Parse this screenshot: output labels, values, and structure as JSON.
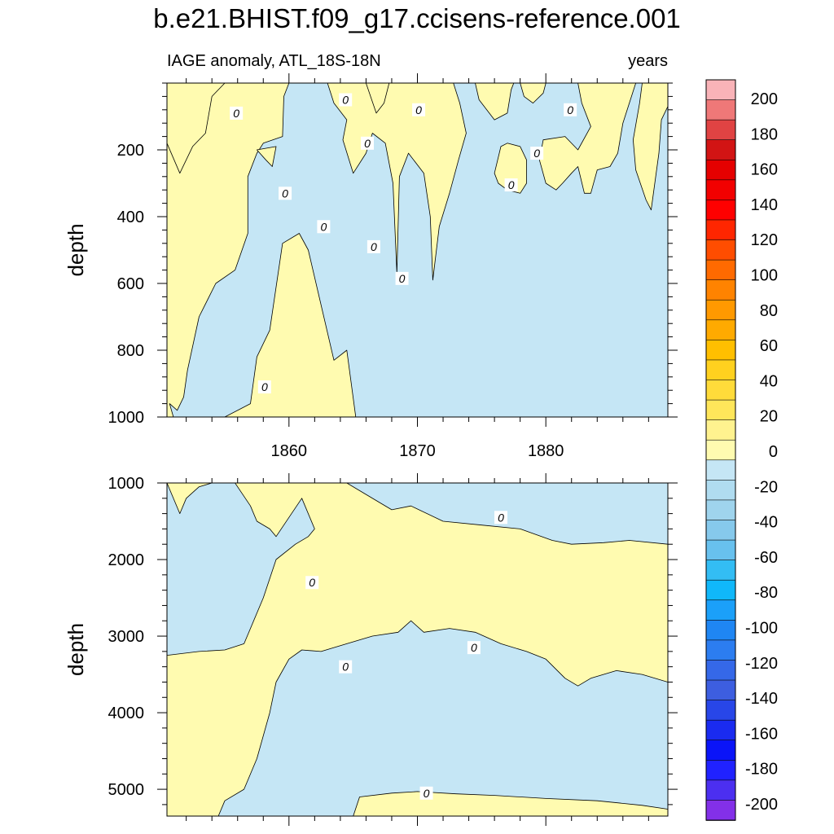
{
  "chart_data": {
    "type": "contour",
    "title": "b.e21.BHIST.f09_g17.ccisens-reference.001",
    "subtitle_left": "IAGE anomaly, ATL_18S-18N",
    "subtitle_right": "years",
    "xaxis": {
      "range": [
        1850.5,
        1889.5
      ],
      "ticks": [
        1860,
        1870,
        1880
      ],
      "tick_labels": [
        "1860",
        "1870",
        "1880"
      ]
    },
    "panels": [
      {
        "id": "upper",
        "ylabel": "depth",
        "ylim": [
          0,
          1000
        ],
        "yticks": [
          200,
          400,
          600,
          800,
          1000
        ],
        "ytick_labels": [
          "200",
          "400",
          "600",
          "800",
          "1000"
        ],
        "background": "negative",
        "positive_regions": [
          [
            [
              1850.5,
              0
            ],
            [
              1850.5,
              1000
            ],
            [
              1851.0,
              1000
            ],
            [
              1850.7,
              960
            ],
            [
              1851.3,
              980
            ],
            [
              1851.8,
              940
            ],
            [
              1852.1,
              860
            ],
            [
              1853.0,
              700
            ],
            [
              1854.3,
              600
            ],
            [
              1855.8,
              560
            ],
            [
              1856.8,
              450
            ],
            [
              1856.8,
              280
            ],
            [
              1857.5,
              210
            ],
            [
              1858.0,
              180
            ],
            [
              1859.5,
              160
            ],
            [
              1859.6,
              40
            ],
            [
              1860.0,
              0
            ]
          ],
          [
            [
              1850.5,
              180
            ],
            [
              1851.5,
              270
            ],
            [
              1852.5,
              190
            ],
            [
              1853.5,
              150
            ],
            [
              1854.0,
              40
            ],
            [
              1855.0,
              0
            ],
            [
              1850.5,
              0
            ]
          ],
          [
            [
              1855.0,
              1000
            ],
            [
              1857.0,
              960
            ],
            [
              1857.5,
              820
            ],
            [
              1858.5,
              740
            ],
            [
              1859.5,
              480
            ],
            [
              1860.8,
              450
            ],
            [
              1861.5,
              500
            ],
            [
              1863.5,
              830
            ],
            [
              1864.5,
              800
            ],
            [
              1865.2,
              1000
            ]
          ],
          [
            [
              1863.0,
              0
            ],
            [
              1863.5,
              60
            ],
            [
              1864.5,
              110
            ],
            [
              1864.2,
              170
            ],
            [
              1865.0,
              270
            ],
            [
              1866.0,
              210
            ],
            [
              1866.5,
              150
            ],
            [
              1867.5,
              180
            ],
            [
              1868.1,
              300
            ],
            [
              1868.4,
              570
            ],
            [
              1868.6,
              280
            ],
            [
              1869.3,
              210
            ],
            [
              1870.5,
              270
            ],
            [
              1871.0,
              400
            ],
            [
              1871.2,
              590
            ],
            [
              1871.7,
              430
            ],
            [
              1872.5,
              330
            ],
            [
              1873.2,
              230
            ],
            [
              1873.8,
              150
            ],
            [
              1873.3,
              60
            ],
            [
              1872.8,
              0
            ]
          ],
          [
            [
              1874.5,
              0
            ],
            [
              1874.8,
              50
            ],
            [
              1876.0,
              110
            ],
            [
              1877.0,
              90
            ],
            [
              1877.3,
              20
            ],
            [
              1877.5,
              0
            ]
          ],
          [
            [
              1878.0,
              0
            ],
            [
              1878.3,
              40
            ],
            [
              1879.0,
              60
            ],
            [
              1879.8,
              30
            ],
            [
              1880.0,
              0
            ]
          ],
          [
            [
              1879.8,
              170
            ],
            [
              1879.5,
              230
            ],
            [
              1880.0,
              300
            ],
            [
              1880.8,
              320
            ],
            [
              1881.3,
              300
            ],
            [
              1882.0,
              270
            ],
            [
              1882.5,
              250
            ],
            [
              1883.0,
              330
            ],
            [
              1883.5,
              330
            ],
            [
              1884.0,
              260
            ],
            [
              1885.0,
              250
            ],
            [
              1885.6,
              210
            ],
            [
              1886.0,
              120
            ],
            [
              1886.5,
              60
            ],
            [
              1887.0,
              0
            ],
            [
              1882.5,
              0
            ],
            [
              1882.8,
              60
            ],
            [
              1883.5,
              130
            ],
            [
              1882.5,
              200
            ],
            [
              1881.5,
              160
            ]
          ],
          [
            [
              1876.5,
              190
            ],
            [
              1876.0,
              270
            ],
            [
              1876.3,
              300
            ],
            [
              1877.0,
              320
            ],
            [
              1878.0,
              330
            ],
            [
              1878.5,
              300
            ],
            [
              1878.5,
              230
            ],
            [
              1878.0,
              190
            ],
            [
              1877.0,
              180
            ]
          ],
          [
            [
              1887.5,
              0
            ],
            [
              1887.3,
              60
            ],
            [
              1886.8,
              170
            ],
            [
              1887.0,
              260
            ],
            [
              1887.8,
              350
            ],
            [
              1888.2,
              380
            ],
            [
              1888.8,
              210
            ],
            [
              1889.0,
              110
            ],
            [
              1889.5,
              70
            ],
            [
              1889.5,
              0
            ]
          ],
          [
            [
              1857.5,
              200
            ],
            [
              1859.0,
              190
            ],
            [
              1858.7,
              250
            ],
            [
              1858.2,
              230
            ]
          ],
          [
            [
              1866.0,
              0
            ],
            [
              1866.8,
              90
            ],
            [
              1867.4,
              60
            ],
            [
              1867.8,
              0
            ]
          ]
        ],
        "contour_labels": [
          {
            "x": 1855.9,
            "y": 90,
            "text": "0"
          },
          {
            "x": 1864.4,
            "y": 50,
            "text": "0"
          },
          {
            "x": 1866.1,
            "y": 180,
            "text": "0"
          },
          {
            "x": 1870.1,
            "y": 80,
            "text": "0"
          },
          {
            "x": 1877.3,
            "y": 305,
            "text": "0"
          },
          {
            "x": 1879.3,
            "y": 210,
            "text": "0"
          },
          {
            "x": 1881.9,
            "y": 80,
            "text": "0"
          },
          {
            "x": 1859.7,
            "y": 330,
            "text": "0"
          },
          {
            "x": 1862.7,
            "y": 430,
            "text": "0"
          },
          {
            "x": 1866.6,
            "y": 490,
            "text": "0"
          },
          {
            "x": 1868.8,
            "y": 585,
            "text": "0"
          },
          {
            "x": 1858.1,
            "y": 910,
            "text": "0"
          }
        ]
      },
      {
        "id": "lower",
        "ylabel": "depth",
        "ylim": [
          1000,
          5350
        ],
        "yticks": [
          1000,
          2000,
          3000,
          4000,
          5000
        ],
        "ytick_labels": [
          "1000",
          "2000",
          "3000",
          "4000",
          "5000"
        ],
        "background": "negative",
        "positive_regions": [
          [
            [
              1850.5,
              1000
            ],
            [
              1851.5,
              1400
            ],
            [
              1852.0,
              1200
            ],
            [
              1853.0,
              1050
            ],
            [
              1854.0,
              1000
            ]
          ],
          [
            [
              1850.5,
              3250
            ],
            [
              1853.0,
              3200
            ],
            [
              1855.0,
              3180
            ],
            [
              1856.5,
              3100
            ],
            [
              1857.0,
              2900
            ],
            [
              1858.0,
              2500
            ],
            [
              1859.0,
              2000
            ],
            [
              1860.5,
              1800
            ],
            [
              1861.5,
              1700
            ],
            [
              1862.0,
              1600
            ],
            [
              1861.0,
              1200
            ],
            [
              1860.0,
              1450
            ],
            [
              1859.0,
              1700
            ],
            [
              1858.5,
              1600
            ],
            [
              1857.5,
              1500
            ],
            [
              1857.0,
              1300
            ],
            [
              1856.0,
              1050
            ],
            [
              1855.8,
              1000
            ],
            [
              1864.5,
              1000
            ],
            [
              1867.0,
              1250
            ],
            [
              1868.0,
              1350
            ],
            [
              1869.5,
              1300
            ],
            [
              1872.0,
              1500
            ],
            [
              1875.0,
              1550
            ],
            [
              1878.0,
              1600
            ],
            [
              1880.5,
              1750
            ],
            [
              1882.0,
              1800
            ],
            [
              1884.5,
              1780
            ],
            [
              1886.5,
              1750
            ],
            [
              1889.5,
              1800
            ],
            [
              1889.5,
              3600
            ],
            [
              1887.5,
              3500
            ],
            [
              1885.5,
              3450
            ],
            [
              1883.5,
              3550
            ],
            [
              1882.5,
              3650
            ],
            [
              1881.5,
              3550
            ],
            [
              1880.0,
              3300
            ],
            [
              1878.5,
              3200
            ],
            [
              1876.5,
              3100
            ],
            [
              1874.5,
              2950
            ],
            [
              1872.5,
              2900
            ],
            [
              1870.5,
              2950
            ],
            [
              1869.5,
              2800
            ],
            [
              1868.5,
              2950
            ],
            [
              1866.5,
              3000
            ],
            [
              1864.5,
              3100
            ],
            [
              1862.5,
              3200
            ],
            [
              1861.0,
              3180
            ],
            [
              1860.0,
              3300
            ],
            [
              1859.0,
              3600
            ],
            [
              1858.5,
              4000
            ],
            [
              1857.5,
              4600
            ],
            [
              1856.5,
              5000
            ],
            [
              1855.0,
              5150
            ],
            [
              1854.5,
              5350
            ],
            [
              1850.5,
              5350
            ]
          ],
          [
            [
              1865.0,
              5350
            ],
            [
              1865.5,
              5100
            ],
            [
              1868.0,
              5050
            ],
            [
              1870.0,
              5030
            ],
            [
              1873.0,
              5060
            ],
            [
              1876.0,
              5080
            ],
            [
              1880.0,
              5120
            ],
            [
              1884.0,
              5150
            ],
            [
              1887.5,
              5210
            ],
            [
              1889.5,
              5260
            ],
            [
              1889.5,
              5350
            ]
          ]
        ],
        "contour_labels": [
          {
            "x": 1861.8,
            "y": 2300,
            "text": "0"
          },
          {
            "x": 1864.4,
            "y": 3400,
            "text": "0"
          },
          {
            "x": 1876.5,
            "y": 1450,
            "text": "0"
          },
          {
            "x": 1874.4,
            "y": 3150,
            "text": "0"
          },
          {
            "x": 1870.7,
            "y": 5050,
            "text": "0"
          }
        ]
      }
    ],
    "colorbar": {
      "levels": [
        -200,
        -180,
        -160,
        -140,
        -120,
        -100,
        -80,
        -60,
        -40,
        -20,
        0,
        20,
        40,
        60,
        80,
        100,
        120,
        140,
        160,
        180,
        200
      ],
      "labels": [
        "200",
        "180",
        "160",
        "140",
        "120",
        "100",
        "80",
        "60",
        "40",
        "20",
        "0",
        "-20",
        "-40",
        "-60",
        "-80",
        "-100",
        "-120",
        "-140",
        "-160",
        "-180",
        "-200"
      ],
      "colors_top_to_bottom": [
        "#f9b3b8",
        "#ef7878",
        "#e04343",
        "#d21414",
        "#e50000",
        "#f20000",
        "#ff0000",
        "#ff2600",
        "#ff4d00",
        "#ff6a00",
        "#ff8300",
        "#ff9900",
        "#ffaa00",
        "#ffbf00",
        "#ffd11f",
        "#ffdb3a",
        "#ffe65a",
        "#fff28f",
        "#fffbb0",
        "#c5e6f5",
        "#b0dcf0",
        "#9fd4ed",
        "#86c9ec",
        "#68c1ee",
        "#33bdf4",
        "#10b8fa",
        "#1ba0f9",
        "#1f86f3",
        "#2c7df0",
        "#3568e8",
        "#3d5ee0",
        "#2846e8",
        "#1a2bf0",
        "#0a14f8",
        "#2022ff",
        "#4c2ff0",
        "#8330e8"
      ],
      "positive_fill": "#fffbb0",
      "negative_fill": "#c5e6f5"
    }
  }
}
